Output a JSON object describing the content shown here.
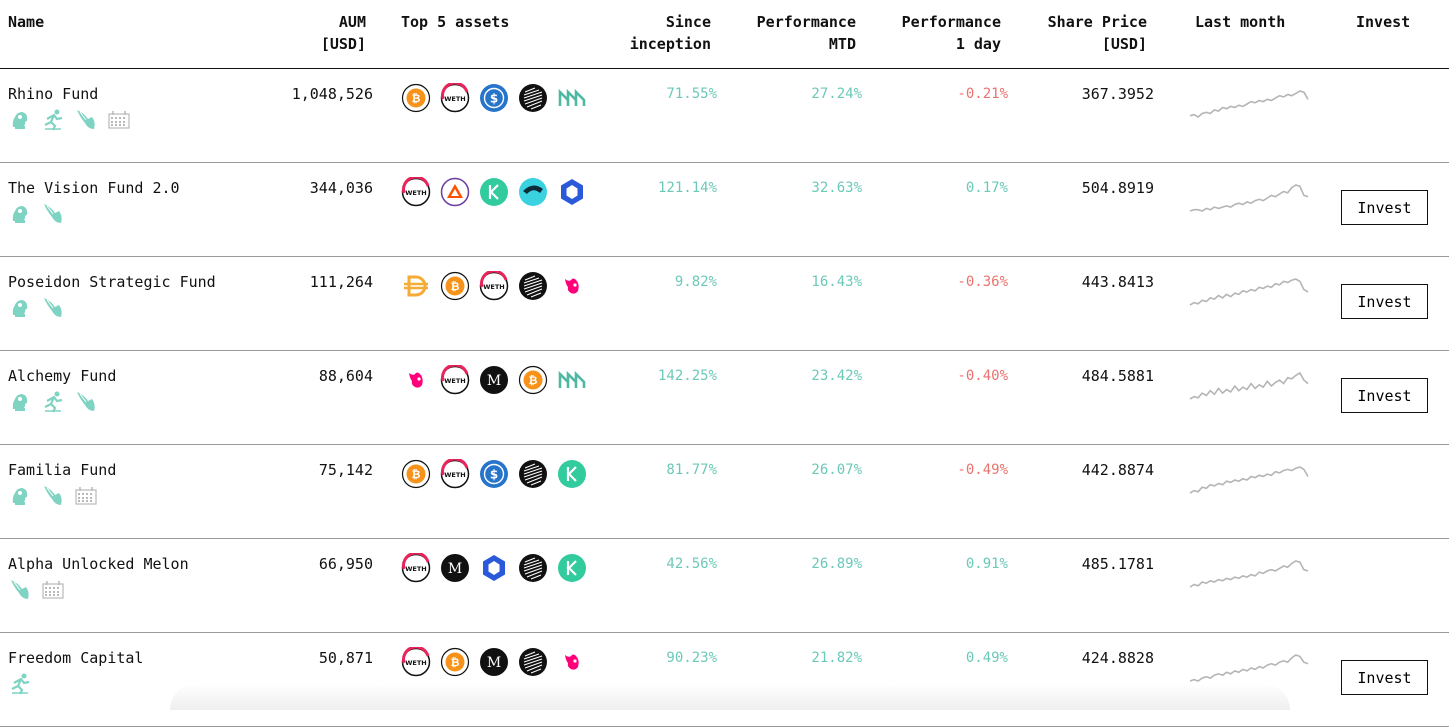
{
  "header": {
    "name": "Name",
    "aum": "AUM\n[USD]",
    "assets": "Top 5 assets",
    "since": "Since\ninception",
    "mtd": "Performance\nMTD",
    "day": "Performance\n1 day",
    "price": "Share Price\n[USD]",
    "last_month": "Last month",
    "invest": "Invest"
  },
  "colors": {
    "positive": "#6cc9b9",
    "negative": "#e9736f",
    "spark": "#b5b5b5"
  },
  "funds": [
    {
      "name": "Rhino Fund",
      "aum": "1,048,526",
      "managers": [
        "bust-icon",
        "runner-icon",
        "wing-icon",
        "calendar-icon"
      ],
      "assets": [
        "btc",
        "weth",
        "usdc",
        "layers",
        "mkr"
      ],
      "since": "71.55%",
      "mtd": "27.24%",
      "day": "-0.21%",
      "day_sign": "neg",
      "price": "367.3952",
      "invest": "",
      "spark": [
        10,
        11,
        9,
        12,
        13,
        12,
        15,
        14,
        17,
        16,
        18,
        17,
        19,
        18,
        20,
        22,
        21,
        23,
        22,
        24,
        23,
        25,
        27,
        26,
        28,
        27,
        29,
        31,
        30,
        24
      ]
    },
    {
      "name": "The Vision Fund 2.0",
      "aum": "344,036",
      "managers": [
        "bust-icon",
        "wing-icon"
      ],
      "assets": [
        "weth",
        "bat",
        "kyber",
        "chart",
        "link"
      ],
      "since": "121.14%",
      "mtd": "32.63%",
      "day": "0.17%",
      "day_sign": "pos",
      "price": "504.8919",
      "invest": "Invest",
      "spark": [
        10,
        11,
        11,
        10,
        12,
        11,
        13,
        12,
        13,
        14,
        13,
        15,
        16,
        15,
        17,
        16,
        18,
        19,
        18,
        20,
        22,
        21,
        23,
        25,
        24,
        28,
        30,
        29,
        22,
        21
      ]
    },
    {
      "name": "Poseidon Strategic Fund",
      "aum": "111,264",
      "managers": [
        "bust-icon",
        "wing-icon"
      ],
      "assets": [
        "dai",
        "btc",
        "weth",
        "layers",
        "uni"
      ],
      "since": "9.82%",
      "mtd": "16.43%",
      "day": "-0.36%",
      "day_sign": "neg",
      "price": "443.8413",
      "invest": "Invest",
      "spark": [
        9,
        11,
        10,
        13,
        12,
        15,
        14,
        17,
        15,
        18,
        16,
        19,
        18,
        21,
        20,
        22,
        21,
        24,
        23,
        25,
        24,
        27,
        26,
        29,
        28,
        30,
        31,
        29,
        22,
        20
      ]
    },
    {
      "name": "Alchemy Fund",
      "aum": "88,604",
      "managers": [
        "bust-icon",
        "runner-icon",
        "wing-icon"
      ],
      "assets": [
        "uni",
        "weth",
        "mln",
        "btc",
        "mkr"
      ],
      "since": "142.25%",
      "mtd": "23.42%",
      "day": "-0.40%",
      "day_sign": "neg",
      "price": "484.5881",
      "invest": "Invest",
      "spark": [
        9,
        11,
        10,
        14,
        12,
        16,
        13,
        18,
        14,
        17,
        15,
        20,
        16,
        19,
        17,
        22,
        18,
        21,
        19,
        24,
        20,
        23,
        25,
        22,
        27,
        26,
        29,
        31,
        25,
        22
      ]
    },
    {
      "name": "Familia Fund",
      "aum": "75,142",
      "managers": [
        "bust-icon",
        "wing-icon",
        "calendar-icon"
      ],
      "assets": [
        "btc",
        "weth",
        "usdc",
        "layers",
        "kyber"
      ],
      "since": "81.77%",
      "mtd": "26.07%",
      "day": "-0.49%",
      "day_sign": "neg",
      "price": "442.8874",
      "invest": "",
      "spark": [
        8,
        10,
        9,
        13,
        12,
        15,
        14,
        16,
        15,
        18,
        17,
        19,
        18,
        20,
        19,
        22,
        21,
        23,
        22,
        24,
        23,
        26,
        25,
        27,
        28,
        27,
        29,
        30,
        28,
        22
      ]
    },
    {
      "name": "Alpha Unlocked Melon",
      "aum": "66,950",
      "managers": [
        "wing-icon",
        "calendar-icon"
      ],
      "assets": [
        "weth",
        "mln",
        "link",
        "layers",
        "kyber"
      ],
      "since": "42.56%",
      "mtd": "26.89%",
      "day": "0.91%",
      "day_sign": "pos",
      "price": "485.1781",
      "invest": "",
      "spark": [
        9,
        11,
        10,
        13,
        12,
        14,
        13,
        15,
        14,
        16,
        15,
        17,
        16,
        18,
        17,
        19,
        18,
        21,
        20,
        22,
        23,
        22,
        24,
        26,
        25,
        28,
        30,
        29,
        23,
        22
      ]
    },
    {
      "name": "Freedom Capital",
      "aum": "50,871",
      "managers": [
        "runner-icon"
      ],
      "assets": [
        "weth",
        "btc",
        "mln",
        "layers",
        "uni"
      ],
      "since": "90.23%",
      "mtd": "21.82%",
      "day": "0.49%",
      "day_sign": "pos",
      "price": "424.8828",
      "invest": "Invest",
      "spark": [
        9,
        10,
        9,
        11,
        12,
        11,
        13,
        14,
        13,
        15,
        14,
        16,
        15,
        17,
        16,
        18,
        17,
        19,
        18,
        20,
        21,
        20,
        22,
        23,
        22,
        25,
        27,
        26,
        22,
        21
      ]
    }
  ]
}
